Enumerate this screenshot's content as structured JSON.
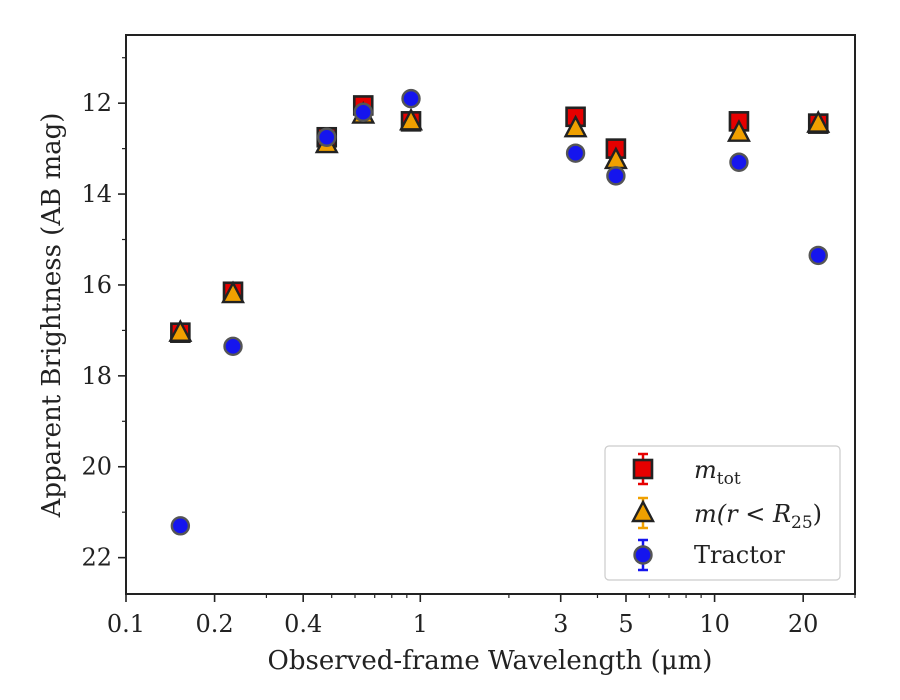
{
  "colors": {
    "mtot_fill": "#e60000",
    "mr25_fill": "#f0a000",
    "tractor_fill": "#1515ee",
    "marker_edge": "#222222",
    "tractor_edge": "#555555",
    "axes": "#222222"
  },
  "chart_data": {
    "type": "scatter",
    "xlabel": "Observed-frame Wavelength (μm)",
    "ylabel": "Apparent Brightness (AB mag)",
    "xscale": "log",
    "xlim": [
      0.1,
      30
    ],
    "ylim": [
      22.8,
      10.5
    ],
    "y_inverted": true,
    "xticks": [
      {
        "value": 0.1,
        "label": "0.1"
      },
      {
        "value": 0.2,
        "label": "0.2"
      },
      {
        "value": 0.4,
        "label": "0.4"
      },
      {
        "value": 1,
        "label": "1"
      },
      {
        "value": 3,
        "label": "3"
      },
      {
        "value": 5,
        "label": "5"
      },
      {
        "value": 10,
        "label": "10"
      },
      {
        "value": 20,
        "label": "20"
      }
    ],
    "yticks": [
      {
        "value": 12,
        "label": "12"
      },
      {
        "value": 14,
        "label": "14"
      },
      {
        "value": 16,
        "label": "16"
      },
      {
        "value": 18,
        "label": "18"
      },
      {
        "value": 20,
        "label": "20"
      },
      {
        "value": 22,
        "label": "22"
      }
    ],
    "grid": false,
    "legend_position": "bottom-right",
    "series": [
      {
        "key": "mtot",
        "name": "m",
        "name_sub": "tot",
        "marker": "square",
        "x": [
          0.153,
          0.231,
          0.481,
          0.64,
          0.93,
          3.37,
          4.62,
          12.1,
          22.5
        ],
        "y": [
          17.05,
          16.15,
          12.75,
          12.05,
          12.4,
          12.3,
          13.0,
          12.4,
          12.45
        ]
      },
      {
        "key": "mr25",
        "name": "m(r < R",
        "name_sub": "25",
        "name_suffix": ")",
        "marker": "triangle",
        "x": [
          0.153,
          0.231,
          0.481,
          0.64,
          0.93,
          3.37,
          4.62,
          12.1,
          22.5
        ],
        "y": [
          17.05,
          16.2,
          12.9,
          12.25,
          12.4,
          12.55,
          13.25,
          12.65,
          12.45
        ]
      },
      {
        "key": "tractor",
        "name": "Tractor",
        "marker": "circle",
        "x": [
          0.153,
          0.231,
          0.481,
          0.64,
          0.93,
          3.37,
          4.62,
          12.1,
          22.5
        ],
        "y": [
          21.3,
          17.35,
          12.75,
          12.2,
          11.9,
          13.1,
          13.6,
          13.3,
          15.35
        ]
      }
    ]
  }
}
